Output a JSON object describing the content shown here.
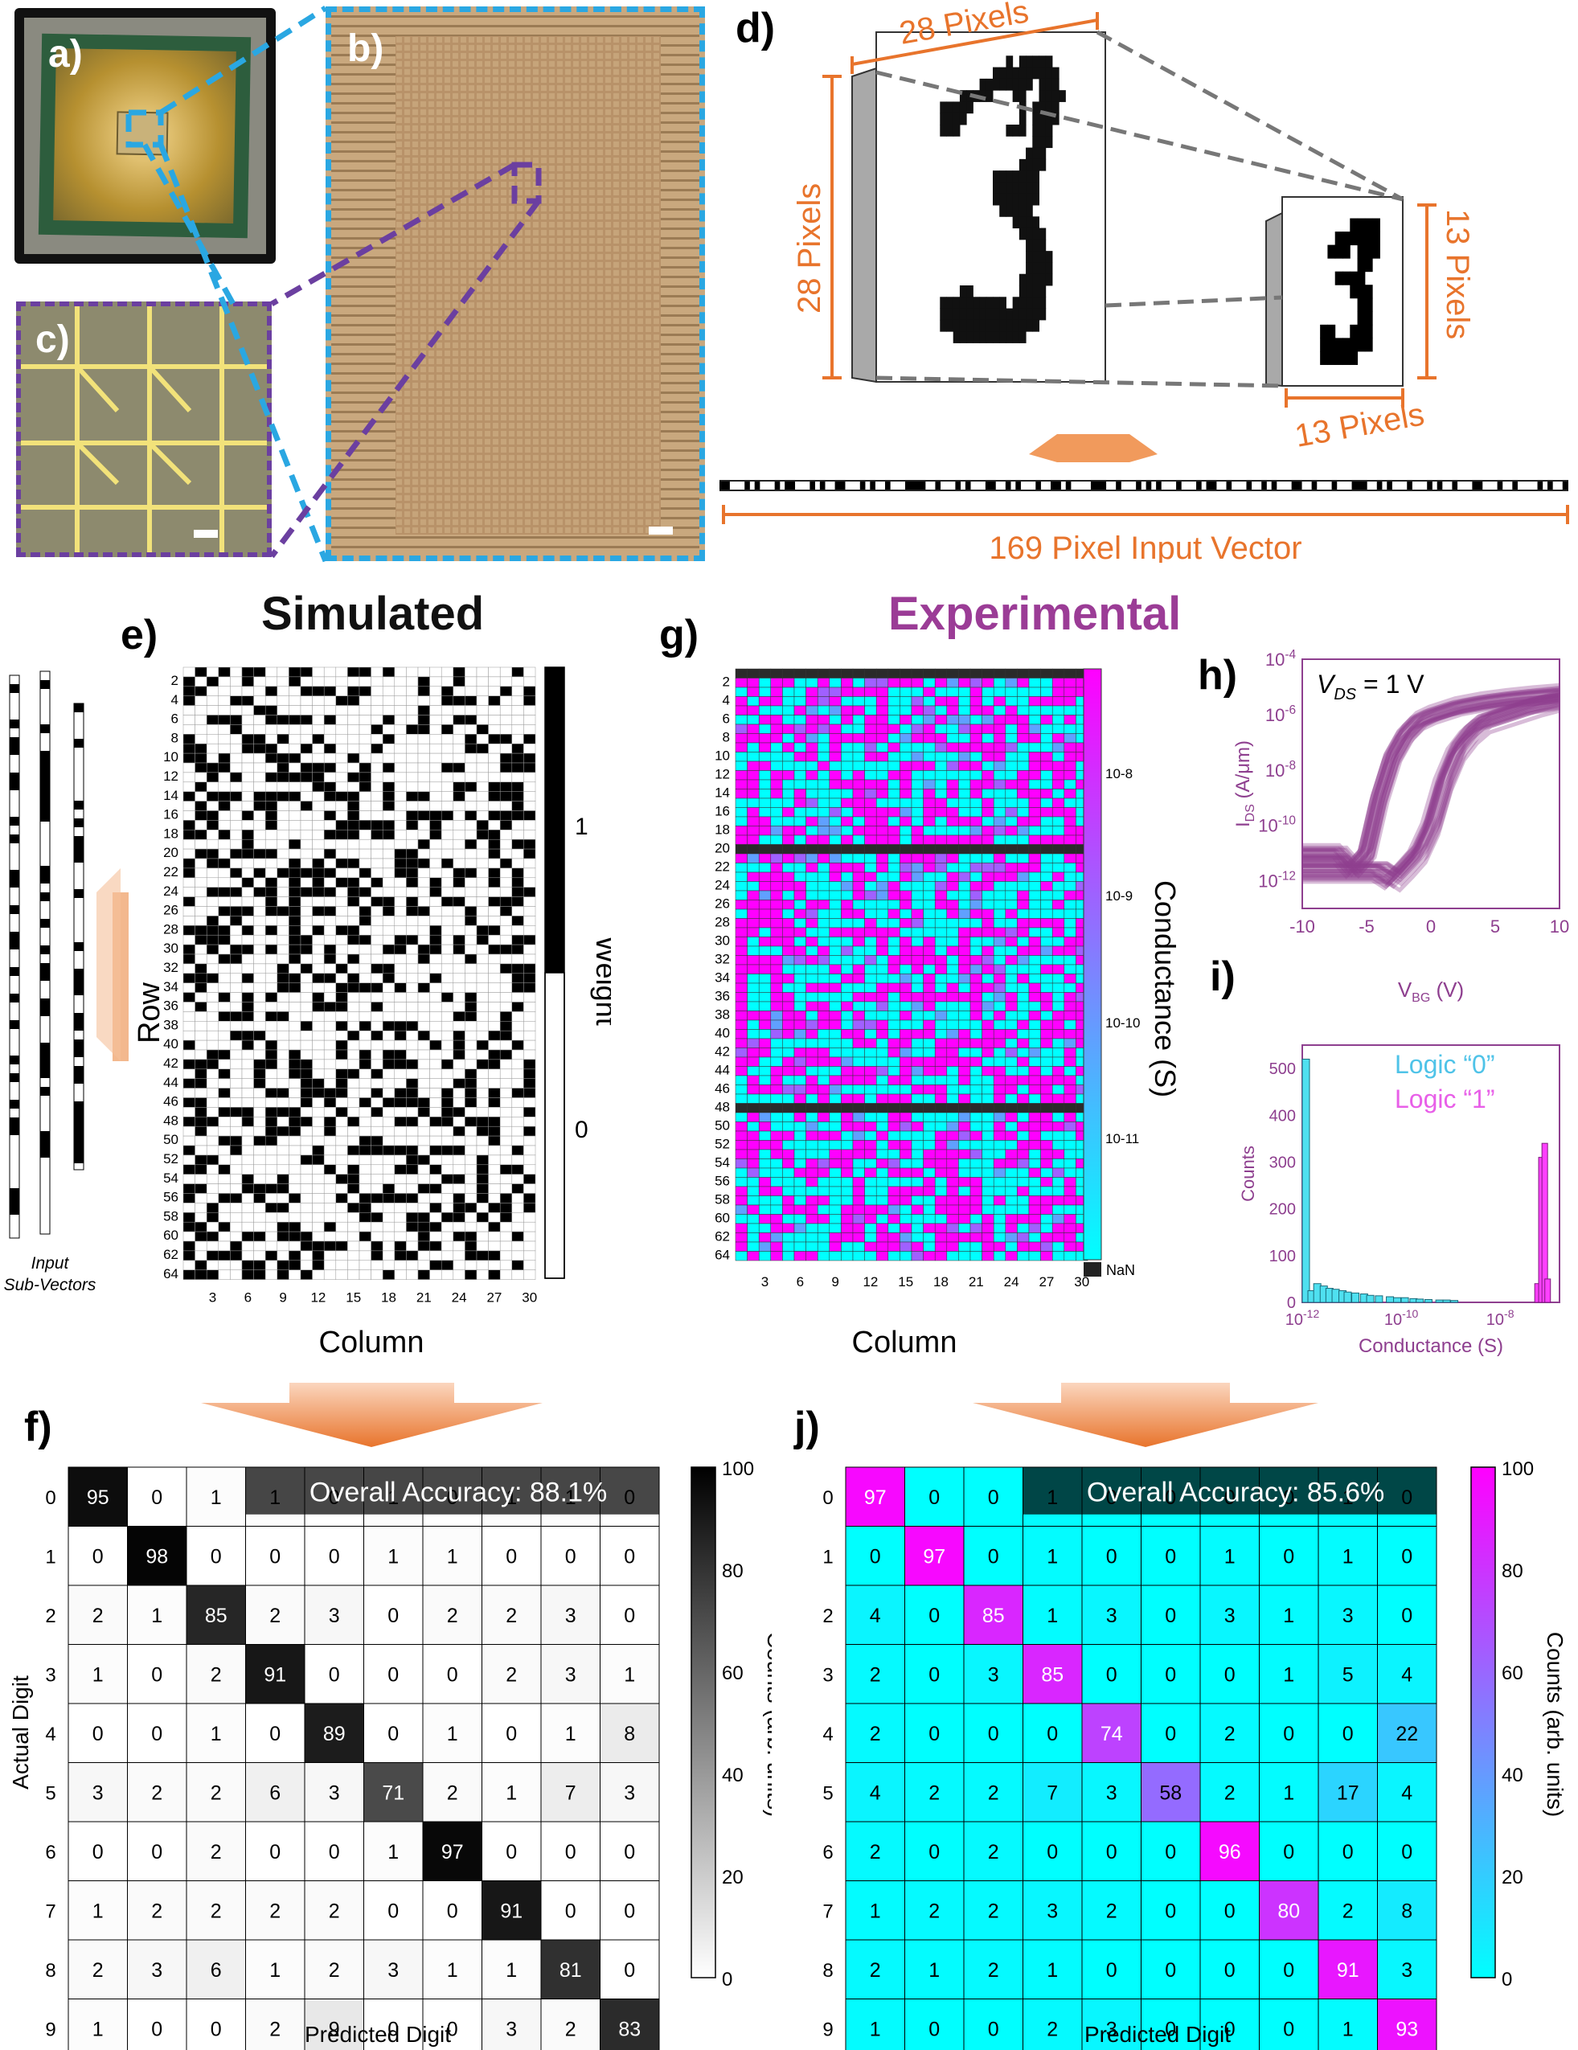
{
  "panel_labels": {
    "a": "a)",
    "b": "b)",
    "c": "c)",
    "d": "d)",
    "e": "e)",
    "f": "f)",
    "g": "g)",
    "h": "h)",
    "i": "i)",
    "j": "j)"
  },
  "section_titles": {
    "simulated": "Simulated",
    "experimental": "Experimental"
  },
  "colors": {
    "orange": "#e8742c",
    "cyan_dash": "#2aa7e2",
    "purple_dash": "#6b3fa0",
    "magenta": "#ff00ff",
    "cyan": "#00ffff",
    "purple_text": "#9b3c96",
    "data_purple": "#8e3f8f",
    "photo_gold": "#b99455",
    "chip_gold": "#caa23e"
  },
  "panel_d": {
    "top_label": "28 Pixels",
    "left_label": "28 Pixels",
    "right_label": "13 Pixels",
    "bottom_label": "13 Pixels",
    "vector_caption": "169 Pixel Input Vector",
    "big_digit_pixels": [
      "..........................",
      "................2.22222...",
      "..............2222222222..",
      "............22222222.222..",
      ".........22222...22..2222.",
      "......22222.......2.2222..",
      "......2222........2.2222..",
      "......222.......222.222...",
      "....................222...",
      "...................222....",
      "..................2222....",
      "..............2222222.....",
      "..............2222222.....",
      "..............2222222.....",
      "...............22222......",
      ".................2222.....",
      "..................2222....",
      "...................222....",
      "...................2222...",
      "...................2222...",
      "..................22222...",
      ".........22.......2222....",
      "......2222222222.22222....",
      "......2222222222222222....",
      "......222222222222222.....",
      "........22222222222.......",
      "..........................",
      ".........................."
    ],
    "small_digit_pixels": [
      "..............",
      "........1111..",
      "......111111..",
      ".....111.111..",
      ".........11...",
      "......1111....",
      "........111...",
      ".........11...",
      ".........11...",
      "....11..111...",
      "....1111111...",
      "....11111.....",
      ".............."
    ],
    "vector_bits": [
      1,
      1,
      0,
      0,
      0,
      1,
      0,
      1,
      0,
      0,
      0,
      1,
      0,
      1,
      1,
      0,
      0,
      0,
      1,
      0,
      1,
      0,
      0,
      1,
      1,
      0,
      0,
      0,
      1,
      0,
      1,
      0,
      0,
      1,
      0,
      0,
      0,
      1,
      1,
      1,
      1,
      0,
      0,
      1,
      0,
      0,
      0,
      1,
      0,
      1,
      0,
      0,
      0,
      1,
      1,
      0,
      0,
      1,
      0,
      1,
      0,
      0,
      0,
      1,
      0,
      0,
      1,
      1,
      0,
      1,
      0,
      0,
      0,
      0,
      1,
      1,
      1,
      0,
      0,
      1,
      0,
      0,
      0,
      1,
      0,
      1,
      0,
      1,
      0,
      0,
      0,
      1,
      0,
      0,
      0,
      1,
      0,
      1,
      1,
      0,
      0,
      1,
      0,
      0,
      0,
      1,
      0,
      0,
      1,
      0,
      1,
      0,
      0,
      0,
      1,
      1,
      0,
      0,
      1,
      0,
      0,
      0,
      1,
      0,
      0,
      0,
      1,
      1,
      1,
      0,
      0,
      1,
      0,
      1,
      0,
      0,
      0,
      1,
      0,
      0,
      0,
      1,
      0,
      1,
      0,
      0,
      1,
      0,
      0,
      0,
      1,
      1,
      0,
      0,
      0,
      1,
      0,
      0,
      1,
      0,
      0,
      0,
      0,
      1,
      0,
      1,
      0,
      0,
      1
    ]
  },
  "panel_e": {
    "input_caption_1": "Input",
    "input_caption_2": "Sub-Vectors",
    "ylabel": "Row",
    "xlabel": "Column",
    "colorbar_label": "Weight",
    "colorbar_ticks": [
      "1",
      "0"
    ],
    "row_ticks": [
      "2",
      "4",
      "6",
      "8",
      "10",
      "12",
      "14",
      "16",
      "18",
      "20",
      "22",
      "24",
      "26",
      "28",
      "30",
      "32",
      "34",
      "36",
      "38",
      "40",
      "42",
      "44",
      "46",
      "48",
      "50",
      "52",
      "54",
      "56",
      "58",
      "60",
      "62",
      "64"
    ],
    "col_ticks": [
      "3",
      "6",
      "9",
      "12",
      "15",
      "18",
      "21",
      "24",
      "27",
      "30"
    ]
  },
  "panel_g": {
    "ylabel": "Row",
    "xlabel": "Column",
    "colorbar_label": "Conductance (S)",
    "colorbar_ticks": [
      "10-8",
      "10-9",
      "10-10",
      "10-11"
    ],
    "nan_label": "NaN",
    "row_ticks": [
      "2",
      "4",
      "6",
      "8",
      "10",
      "12",
      "14",
      "16",
      "18",
      "20",
      "22",
      "24",
      "26",
      "28",
      "30",
      "32",
      "34",
      "36",
      "38",
      "40",
      "42",
      "44",
      "46",
      "48",
      "50",
      "52",
      "54",
      "56",
      "58",
      "60",
      "62",
      "64"
    ],
    "col_ticks": [
      "3",
      "6",
      "9",
      "12",
      "15",
      "18",
      "21",
      "24",
      "27",
      "30"
    ],
    "nan_rows": [
      1,
      20,
      48
    ]
  },
  "panel_h": {
    "annotation": "V_DS = 1 V",
    "xlabel": "V_BG (V)",
    "ylabel": "I_DS (A/μm)",
    "x_ticks": [
      "-10",
      "-5",
      "0",
      "5",
      "10"
    ],
    "y_ticks": [
      "10-4",
      "10-6",
      "10-8",
      "10-10",
      "10-12"
    ]
  },
  "panel_i": {
    "xlabel": "Conductance (S)",
    "ylabel": "Counts",
    "legend_0": "Logic “0”",
    "legend_1": "Logic “1”",
    "y_ticks": [
      "500",
      "400",
      "300",
      "200",
      "100",
      "0"
    ],
    "x_ticks": [
      "10-12",
      "10-10",
      "10-8"
    ]
  },
  "chart_data": [
    {
      "type": "heatmap",
      "panel": "e",
      "xlabel": "Column",
      "ylabel": "Row",
      "colorbar": "Weight",
      "rows": 64,
      "cols": 30,
      "values": "binary weight matrix (0/1)"
    },
    {
      "type": "heatmap",
      "panel": "g",
      "xlabel": "Column",
      "ylabel": "Row",
      "colorbar": "Conductance (S)",
      "rows": 64,
      "cols": 30,
      "nan_rows": [
        1,
        20,
        48
      ]
    },
    {
      "type": "line",
      "panel": "h",
      "xlabel": "V_BG (V)",
      "ylabel": "I_DS (A/μm)",
      "yscale": "log",
      "xlim": [
        -10,
        10
      ],
      "ylim": [
        1e-13,
        0.0001
      ],
      "series": [
        {
          "x": [
            -10,
            -7,
            -6,
            -5,
            -4,
            -3,
            -2,
            -1,
            0,
            2,
            4,
            6,
            8,
            10
          ],
          "y": [
            1e-11,
            1e-11,
            3e-12,
            1e-11,
            1e-09,
            3e-08,
            2e-07,
            6e-07,
            1e-06,
            2e-06,
            3e-06,
            4e-06,
            5e-06,
            6e-06
          ]
        },
        {
          "x": [
            -10,
            -4,
            -3,
            -2,
            -1,
            0,
            1,
            2,
            3,
            4,
            6,
            8,
            10
          ],
          "y": [
            2e-12,
            2e-12,
            1e-12,
            3e-12,
            1e-11,
            1e-10,
            4e-09,
            5e-08,
            2e-07,
            5e-07,
            1e-06,
            2e-06,
            3e-06
          ]
        }
      ]
    },
    {
      "type": "bar",
      "panel": "i",
      "xlabel": "Conductance (S)",
      "ylabel": "Counts",
      "ylim": [
        0,
        550
      ],
      "xscale": "log",
      "series": [
        {
          "name": "Logic “0”",
          "x": [
            1e-12,
            1.3e-12,
            1.7e-12,
            2.3e-12,
            3e-12,
            4e-12,
            5.5e-12,
            7e-12,
            1e-11,
            1.5e-11,
            2e-11,
            3e-11,
            5e-11,
            7e-11,
            1e-10,
            1.5e-10,
            2e-10,
            3e-10,
            5e-10,
            7e-10,
            1e-09
          ],
          "values": [
            520,
            25,
            40,
            35,
            30,
            28,
            25,
            22,
            20,
            18,
            15,
            14,
            12,
            10,
            10,
            8,
            7,
            6,
            5,
            5,
            4
          ]
        },
        {
          "name": "Logic “1”",
          "x": [
            5e-08,
            6e-08,
            7e-08,
            8e-08
          ],
          "values": [
            40,
            310,
            340,
            50
          ]
        }
      ]
    },
    {
      "type": "heatmap",
      "panel": "f",
      "title": "Overall Accuracy: 88.1%",
      "xlabel": "Predicted Digit",
      "ylabel": "Actual Digit",
      "colorbar": "Counts (arb. units)",
      "categories": [
        "0",
        "1",
        "2",
        "3",
        "4",
        "5",
        "6",
        "7",
        "8",
        "9"
      ],
      "colorbar_ticks": [
        "100",
        "80",
        "60",
        "40",
        "20",
        "0"
      ],
      "matrix": [
        [
          95,
          0,
          1,
          1,
          0,
          1,
          0,
          1,
          1,
          0
        ],
        [
          0,
          98,
          0,
          0,
          0,
          1,
          1,
          0,
          0,
          0
        ],
        [
          2,
          1,
          85,
          2,
          3,
          0,
          2,
          2,
          3,
          0
        ],
        [
          1,
          0,
          2,
          91,
          0,
          0,
          0,
          2,
          3,
          1
        ],
        [
          0,
          0,
          1,
          0,
          89,
          0,
          1,
          0,
          1,
          8
        ],
        [
          3,
          2,
          2,
          6,
          3,
          71,
          2,
          1,
          7,
          3
        ],
        [
          0,
          0,
          2,
          0,
          0,
          1,
          97,
          0,
          0,
          0
        ],
        [
          1,
          2,
          2,
          2,
          2,
          0,
          0,
          91,
          0,
          0
        ],
        [
          2,
          3,
          6,
          1,
          2,
          3,
          1,
          1,
          81,
          0
        ],
        [
          1,
          0,
          0,
          2,
          9,
          0,
          0,
          3,
          2,
          83
        ]
      ]
    },
    {
      "type": "heatmap",
      "panel": "j",
      "title": "Overall Accuracy: 85.6%",
      "xlabel": "Predicted Digit",
      "ylabel": "Actual Digit",
      "colorbar": "Counts (arb. units)",
      "categories": [
        "0",
        "1",
        "2",
        "3",
        "4",
        "5",
        "6",
        "7",
        "8",
        "9"
      ],
      "colorbar_ticks": [
        "100",
        "80",
        "60",
        "40",
        "20",
        "0"
      ],
      "matrix": [
        [
          97,
          0,
          0,
          1,
          0,
          0,
          0,
          0,
          1,
          0
        ],
        [
          0,
          97,
          0,
          1,
          0,
          0,
          1,
          0,
          1,
          0
        ],
        [
          4,
          0,
          85,
          1,
          3,
          0,
          3,
          1,
          3,
          0
        ],
        [
          2,
          0,
          3,
          85,
          0,
          0,
          0,
          1,
          5,
          4
        ],
        [
          2,
          0,
          0,
          0,
          74,
          0,
          2,
          0,
          0,
          22
        ],
        [
          4,
          2,
          2,
          7,
          3,
          58,
          2,
          1,
          17,
          4
        ],
        [
          2,
          0,
          2,
          0,
          0,
          0,
          96,
          0,
          0,
          0
        ],
        [
          1,
          2,
          2,
          3,
          2,
          0,
          0,
          80,
          2,
          8
        ],
        [
          2,
          1,
          2,
          1,
          0,
          0,
          0,
          0,
          91,
          3
        ],
        [
          1,
          0,
          0,
          2,
          3,
          0,
          0,
          0,
          1,
          93
        ]
      ]
    }
  ]
}
